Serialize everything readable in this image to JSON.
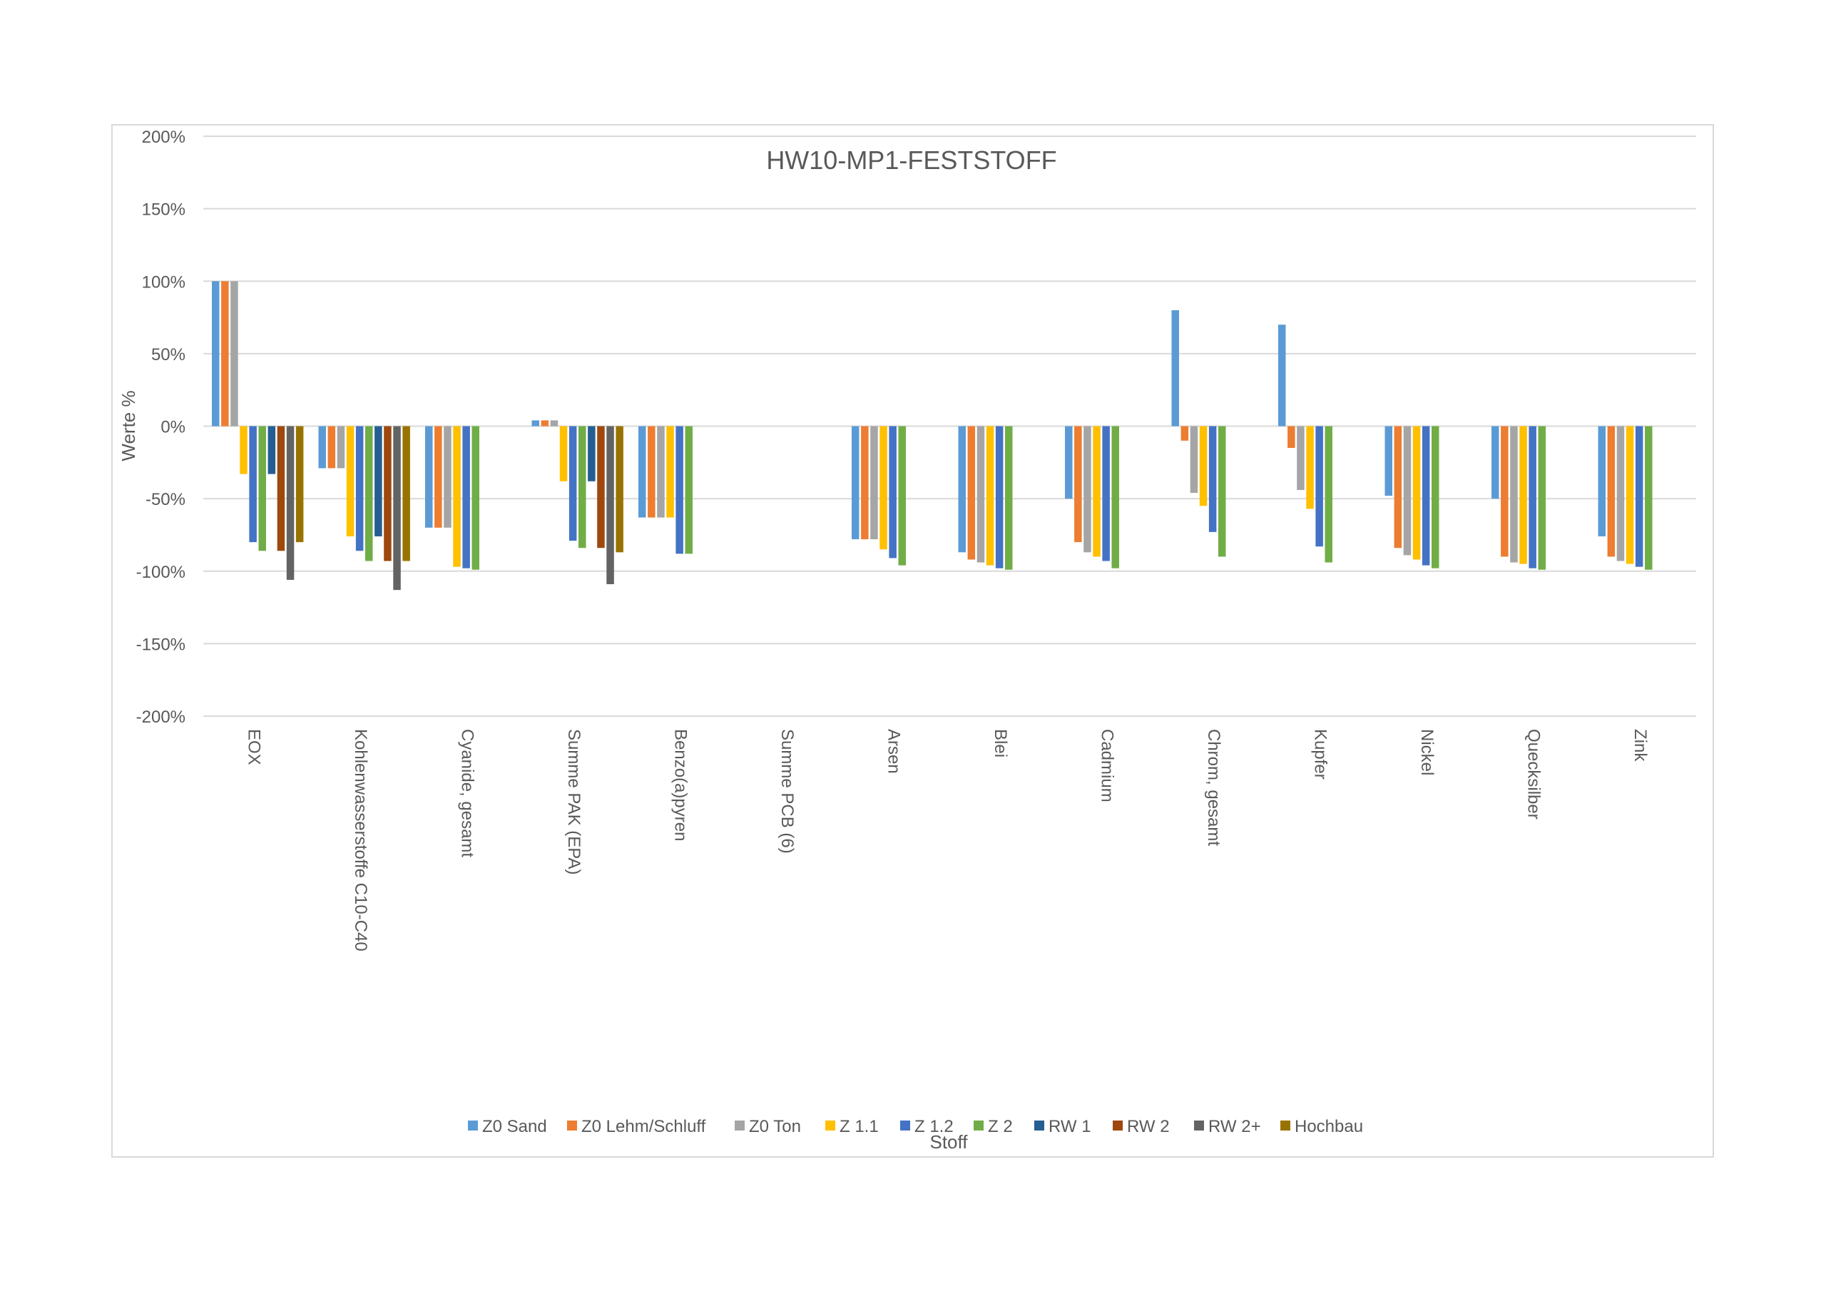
{
  "chart_data": {
    "type": "bar",
    "title": "HW10-MP1-FESTSTOFF",
    "xlabel": "Stoff",
    "ylabel": "Werte %",
    "ylim": [
      -200,
      200
    ],
    "yticks": [
      200,
      150,
      100,
      50,
      0,
      -50,
      -100,
      -150,
      -200
    ],
    "ytick_labels": [
      "200%",
      "150%",
      "100%",
      "50%",
      "0%",
      "-50%",
      "-100%",
      "-150%",
      "-200%"
    ],
    "grid": true,
    "legend_position": "bottom",
    "categories": [
      "EOX",
      "Kohlenwasserstoffe C10-C40",
      "Cyanide, gesamt",
      "Summe PAK (EPA)",
      "Benzo(a)pyren",
      "Summe PCB (6)",
      "Arsen",
      "Blei",
      "Cadmium",
      "Chrom, gesamt",
      "Kupfer",
      "Nickel",
      "Quecksilber",
      "Zink"
    ],
    "series": [
      {
        "name": "Z0 Sand",
        "color": "#5B9BD5",
        "values": [
          100,
          -29,
          -70,
          4,
          -63,
          null,
          -78,
          -87,
          -50,
          80,
          70,
          -48,
          -50,
          -76
        ]
      },
      {
        "name": "Z0 Lehm/Schluff",
        "color": "#ED7D31",
        "values": [
          100,
          -29,
          -70,
          4,
          -63,
          null,
          -78,
          -92,
          -80,
          -10,
          -15,
          -84,
          -90,
          -90
        ]
      },
      {
        "name": "Z0 Ton",
        "color": "#A5A5A5",
        "values": [
          100,
          -29,
          -70,
          4,
          -63,
          null,
          -78,
          -94,
          -87,
          -46,
          -44,
          -89,
          -94,
          -93
        ]
      },
      {
        "name": "Z 1.1",
        "color": "#FFC000",
        "values": [
          -33,
          -76,
          -97,
          -38,
          -63,
          null,
          -85,
          -96,
          -90,
          -55,
          -57,
          -92,
          -95,
          -95
        ]
      },
      {
        "name": "Z 1.2",
        "color": "#4472C4",
        "values": [
          -80,
          -86,
          -98,
          -79,
          -88,
          null,
          -91,
          -98,
          -93,
          -73,
          -83,
          -96,
          -98,
          -97
        ]
      },
      {
        "name": "Z 2",
        "color": "#70AD47",
        "values": [
          -86,
          -93,
          -99,
          -84,
          -88,
          null,
          -96,
          -99,
          -98,
          -90,
          -94,
          -98,
          -99,
          -99
        ]
      },
      {
        "name": "RW 1",
        "color": "#255E91",
        "values": [
          -33,
          -76,
          null,
          -38,
          null,
          null,
          null,
          null,
          null,
          null,
          null,
          null,
          null,
          null
        ]
      },
      {
        "name": "RW 2",
        "color": "#9E480E",
        "values": [
          -86,
          -93,
          null,
          -84,
          null,
          null,
          null,
          null,
          null,
          null,
          null,
          null,
          null,
          null
        ]
      },
      {
        "name": "RW 2+",
        "color": "#636363",
        "values": [
          -106,
          -113,
          null,
          -109,
          null,
          null,
          null,
          null,
          null,
          null,
          null,
          null,
          null,
          null
        ]
      },
      {
        "name": "Hochbau",
        "color": "#997300",
        "values": [
          -80,
          -93,
          null,
          -87,
          null,
          null,
          null,
          null,
          null,
          null,
          null,
          null,
          null,
          null
        ]
      }
    ]
  }
}
